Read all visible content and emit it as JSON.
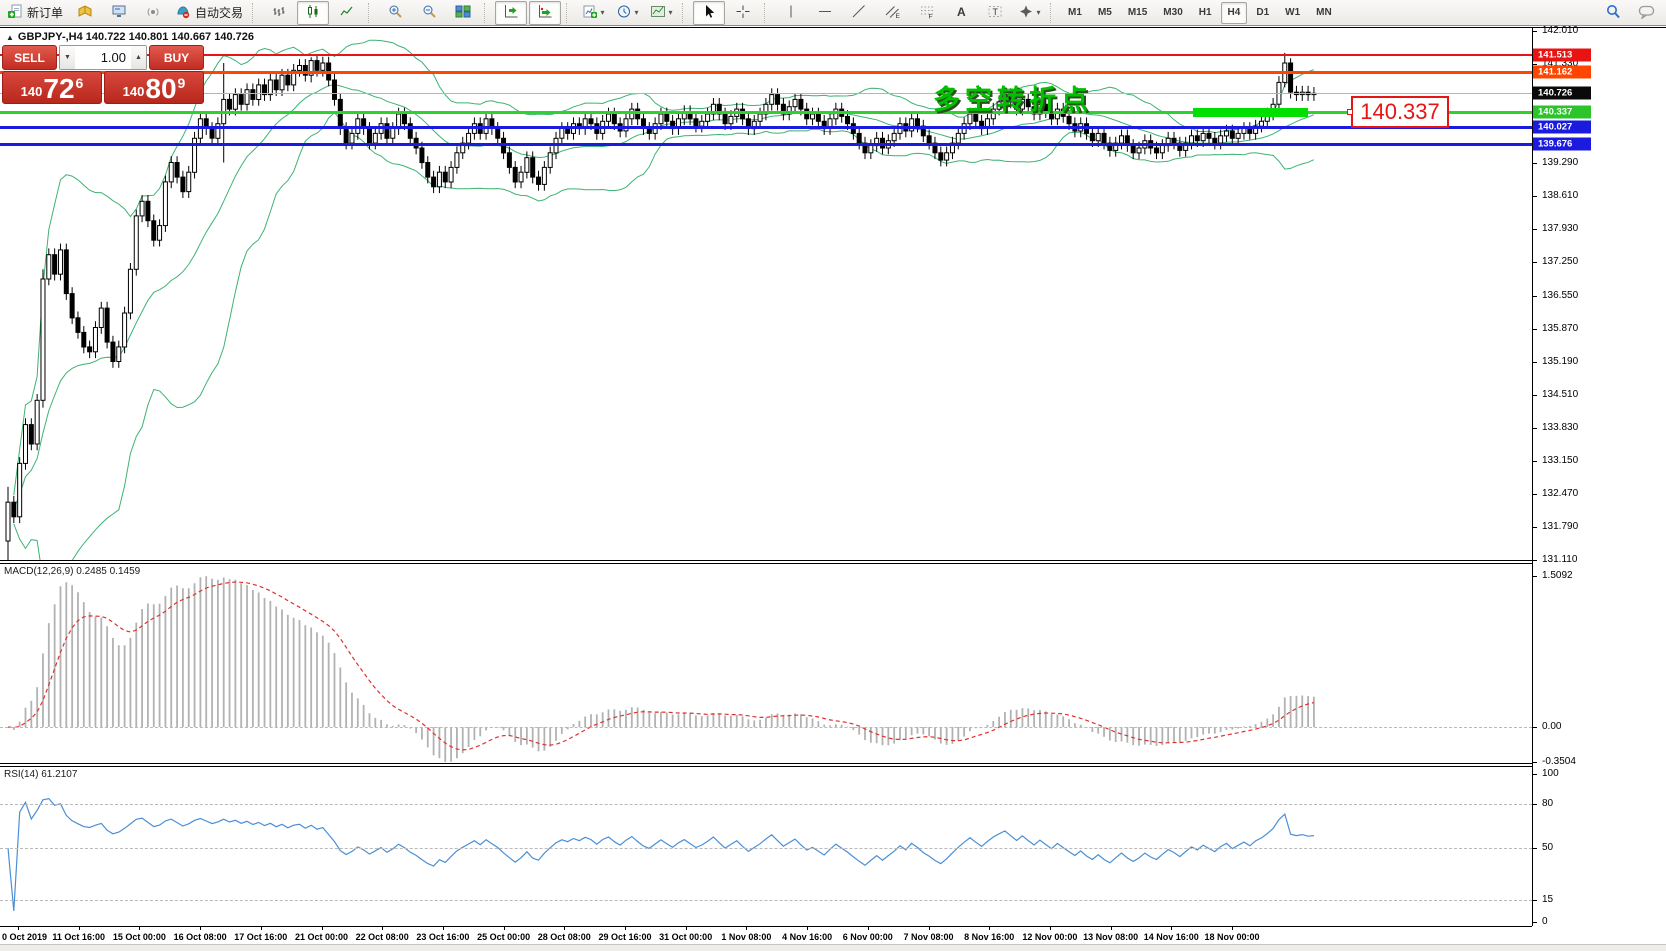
{
  "toolbar": {
    "new_order_label": "新订单",
    "autotrade_label": "自动交易",
    "timeframes": [
      "M1",
      "M5",
      "M15",
      "M30",
      "H1",
      "H4",
      "D1",
      "W1",
      "MN"
    ],
    "active_timeframe": "H4",
    "items": [
      {
        "type": "btn",
        "name": "new-order-button",
        "icon": "neworder",
        "label_key": "new_order_label"
      },
      {
        "type": "btn",
        "name": "styles-button",
        "icon": "book"
      },
      {
        "type": "btn",
        "name": "market-watch-button",
        "icon": "monitor"
      },
      {
        "type": "btn",
        "name": "signals-button",
        "icon": "signal"
      },
      {
        "type": "btn",
        "name": "autotrade-button",
        "icon": "autotrade",
        "label_key": "autotrade_label"
      },
      {
        "type": "sep"
      },
      {
        "type": "btn",
        "name": "bar-chart-button",
        "icon": "bars"
      },
      {
        "type": "btn",
        "name": "candle-chart-button",
        "icon": "candles",
        "pressed": true
      },
      {
        "type": "btn",
        "name": "line-chart-button",
        "icon": "linechart"
      },
      {
        "type": "sep"
      },
      {
        "type": "btn",
        "name": "zoom-in-button",
        "icon": "zoomin"
      },
      {
        "type": "btn",
        "name": "zoom-out-button",
        "icon": "zoomout"
      },
      {
        "type": "btn",
        "name": "tile-windows-button",
        "icon": "tile"
      },
      {
        "type": "sep"
      },
      {
        "type": "btn",
        "name": "chart-shift-button",
        "icon": "shift",
        "pressed": true
      },
      {
        "type": "btn",
        "name": "auto-scroll-button",
        "icon": "autoscroll",
        "pressed": true
      },
      {
        "type": "sep"
      },
      {
        "type": "btn",
        "name": "new-chart-button",
        "icon": "newchart",
        "dropdown": true
      },
      {
        "type": "btn",
        "name": "profiles-button",
        "icon": "clock",
        "dropdown": true
      },
      {
        "type": "btn",
        "name": "indicators-button",
        "icon": "indicator",
        "dropdown": true
      },
      {
        "type": "sep"
      },
      {
        "type": "btn",
        "name": "cursor-button",
        "icon": "cursor",
        "pressed": true
      },
      {
        "type": "btn",
        "name": "crosshair-button",
        "icon": "crosshair"
      },
      {
        "type": "sep"
      },
      {
        "type": "btn",
        "name": "vertical-line-button",
        "icon": "vline"
      },
      {
        "type": "btn",
        "name": "horizontal-line-button",
        "icon": "hline"
      },
      {
        "type": "btn",
        "name": "trendline-button",
        "icon": "tline"
      },
      {
        "type": "btn",
        "name": "channel-button",
        "icon": "channel"
      },
      {
        "type": "btn",
        "name": "fibonacci-button",
        "icon": "fibo"
      },
      {
        "type": "btn",
        "name": "text-button",
        "icon": "textA"
      },
      {
        "type": "btn",
        "name": "label-button",
        "icon": "textT"
      },
      {
        "type": "btn",
        "name": "arrows-button",
        "icon": "arrows",
        "dropdown": true
      },
      {
        "type": "sep"
      },
      {
        "type": "timeframes"
      },
      {
        "type": "spacer"
      },
      {
        "type": "btn",
        "name": "search-button",
        "icon": "search"
      },
      {
        "type": "btn",
        "name": "chat-button",
        "icon": "chat"
      }
    ]
  },
  "symbol_header": {
    "text": "GBPJPY-,H4  140.722 140.801 140.667 140.726"
  },
  "trade_panel": {
    "sell_label": "SELL",
    "buy_label": "BUY",
    "volume": "1.00",
    "sell_pre": "140",
    "sell_big": "72",
    "sell_sup": "6",
    "buy_pre": "140",
    "buy_big": "80",
    "buy_sup": "9"
  },
  "annotation": {
    "text": "多空转折点",
    "color": "#00c000"
  },
  "price_box": {
    "text": "140.337"
  },
  "indicator_labels": {
    "macd": "MACD(12,26,9) 0.2485 0.1459",
    "rsi": "RSI(14) 61.2107"
  },
  "price_axis": {
    "ticks": [
      "142.010",
      "141.330",
      "140.650",
      "139.970",
      "139.290",
      "138.610",
      "137.930",
      "137.250",
      "136.550",
      "135.870",
      "135.190",
      "134.510",
      "133.830",
      "133.150",
      "132.470",
      "131.790",
      "131.110"
    ]
  },
  "macd_axis": [
    {
      "label": "1.5092",
      "value": 1.5092
    },
    {
      "label": "0.00",
      "value": 0
    },
    {
      "label": "-0.3504",
      "value": -0.3504
    }
  ],
  "rsi_axis": [
    {
      "label": "100",
      "value": 100
    },
    {
      "label": "80",
      "value": 80
    },
    {
      "label": "50",
      "value": 50
    },
    {
      "label": "15",
      "value": 15
    },
    {
      "label": "0",
      "value": 0
    }
  ],
  "rsi_levels": [
    80,
    50,
    15
  ],
  "time_axis": {
    "labels": [
      "0 Oct 2019",
      "11 Oct 16:00",
      "15 Oct 00:00",
      "16 Oct 08:00",
      "17 Oct 16:00",
      "21 Oct 00:00",
      "22 Oct 08:00",
      "23 Oct 16:00",
      "25 Oct 00:00",
      "28 Oct 08:00",
      "29 Oct 16:00",
      "31 Oct 00:00",
      "1 Nov 08:00",
      "4 Nov 16:00",
      "6 Nov 00:00",
      "7 Nov 08:00",
      "8 Nov 16:00",
      "12 Nov 00:00",
      "13 Nov 08:00",
      "14 Nov 16:00",
      "18 Nov 00:00"
    ],
    "start_x": 18,
    "step": 60.7
  },
  "chart_data": {
    "type": "candlestick",
    "symbol": "GBPJPY-",
    "timeframe": "H4",
    "title": "GBPJPY- H4 with Bollinger Bands, MACD(12,26,9), RSI(14)",
    "ylim": [
      131.11,
      142.01
    ],
    "first_open": 131.5,
    "default_wick": 0.13,
    "bar_spacing": 5.83,
    "first_x": 8,
    "closes": [
      132.3,
      132.0,
      133.1,
      133.9,
      133.5,
      134.4,
      136.9,
      137.4,
      137.0,
      137.5,
      136.6,
      136.1,
      135.8,
      135.5,
      135.4,
      135.9,
      136.3,
      135.6,
      135.2,
      135.5,
      136.2,
      137.1,
      138.2,
      138.5,
      138.1,
      137.7,
      138.0,
      138.9,
      139.3,
      139.0,
      138.7,
      139.1,
      139.8,
      140.2,
      140.0,
      139.8,
      140.1,
      140.6,
      140.4,
      140.7,
      140.5,
      140.8,
      140.6,
      140.9,
      140.7,
      141.0,
      140.8,
      141.1,
      140.9,
      141.2,
      141.3,
      141.1,
      141.4,
      141.2,
      141.35,
      141.0,
      140.6,
      140.0,
      139.7,
      139.9,
      140.2,
      140.0,
      139.7,
      139.9,
      140.1,
      139.8,
      140.0,
      140.3,
      140.1,
      139.8,
      139.6,
      139.3,
      139.0,
      138.8,
      139.1,
      138.9,
      139.2,
      139.5,
      139.7,
      139.9,
      140.1,
      139.9,
      140.2,
      140.0,
      139.8,
      139.5,
      139.2,
      138.9,
      139.1,
      139.4,
      139.0,
      138.85,
      139.2,
      139.5,
      139.8,
      140.0,
      139.9,
      140.1,
      140.0,
      140.2,
      140.1,
      139.9,
      140.15,
      140.3,
      140.1,
      139.95,
      140.2,
      140.4,
      140.2,
      140.0,
      139.9,
      140.1,
      140.3,
      140.15,
      140.0,
      140.2,
      140.35,
      140.2,
      140.05,
      140.15,
      140.3,
      140.5,
      140.3,
      140.1,
      140.25,
      140.4,
      140.2,
      140.0,
      140.15,
      140.3,
      140.5,
      140.7,
      140.5,
      140.3,
      140.45,
      140.6,
      140.4,
      140.2,
      140.3,
      140.15,
      140.0,
      140.2,
      140.4,
      140.25,
      140.1,
      139.9,
      139.7,
      139.5,
      139.65,
      139.8,
      139.6,
      139.75,
      139.9,
      140.1,
      139.95,
      140.2,
      140.05,
      139.85,
      139.7,
      139.5,
      139.35,
      139.5,
      139.7,
      139.9,
      140.1,
      140.3,
      140.15,
      140.0,
      140.2,
      140.4,
      140.55,
      140.7,
      140.55,
      140.4,
      140.6,
      140.45,
      140.3,
      140.5,
      140.35,
      140.2,
      140.4,
      140.25,
      140.1,
      139.95,
      140.1,
      139.9,
      139.75,
      139.9,
      139.7,
      139.55,
      139.7,
      139.85,
      139.65,
      139.5,
      139.6,
      139.75,
      139.6,
      139.5,
      139.65,
      139.8,
      139.7,
      139.55,
      139.7,
      139.85,
      139.75,
      139.9,
      139.8,
      139.7,
      139.85,
      139.95,
      139.8,
      139.9,
      140.0,
      139.9,
      140.05,
      140.15,
      140.3,
      140.5,
      140.95,
      141.35,
      140.75,
      140.7,
      140.75,
      140.7,
      140.726
    ],
    "special_bars": {
      "0": [
        131.5,
        132.62,
        130.95,
        132.3
      ],
      "6": [
        134.4,
        137.1,
        134.25,
        136.9
      ],
      "37": [
        140.1,
        141.35,
        139.3,
        140.6
      ],
      "52": [
        141.1,
        141.47,
        140.95,
        141.4
      ],
      "219": [
        140.95,
        141.56,
        140.85,
        141.35
      ],
      "220": [
        141.35,
        141.45,
        140.62,
        140.75
      ]
    },
    "hlines": [
      {
        "price": 141.513,
        "color": "#e81414",
        "width": 2,
        "badge_color": "#e81414",
        "label": "141.513"
      },
      {
        "price": 141.162,
        "color": "#ff4500",
        "width": 3,
        "badge_color": "#ff4500",
        "label": "141.162"
      },
      {
        "price": 140.726,
        "color": "#b4b4b4",
        "width": 1,
        "badge_color": "#0a0a0a",
        "label": "140.726"
      },
      {
        "price": 140.337,
        "color": "#2fd12f",
        "width": 3,
        "badge_color": "#2bc42b",
        "label": "140.337"
      },
      {
        "price": 140.027,
        "color": "#1b1be0",
        "width": 3,
        "badge_color": "#1b1be0",
        "label": "140.027"
      },
      {
        "price": 139.676,
        "color": "#1b1be0",
        "width": 3,
        "badge_color": "#1b1be0",
        "label": "139.676"
      }
    ],
    "highlight_rect": {
      "x": 1193,
      "y": 108,
      "width": 115,
      "height": 9,
      "color": "#00df00"
    },
    "indicators": {
      "bollinger": {
        "period": 20,
        "deviation": 2,
        "color": "#3cb371"
      },
      "macd": {
        "fast": 12,
        "slow": 26,
        "signal": 9,
        "hist_color": "#b2b2b2",
        "signal_color": "#e03030",
        "main_current": 0.2485,
        "signal_current": 0.1459,
        "scale_max": 1.5092,
        "scale_min": -0.3504
      },
      "rsi": {
        "period": 14,
        "color": "#4a8fd6",
        "current": 61.2107
      }
    }
  }
}
